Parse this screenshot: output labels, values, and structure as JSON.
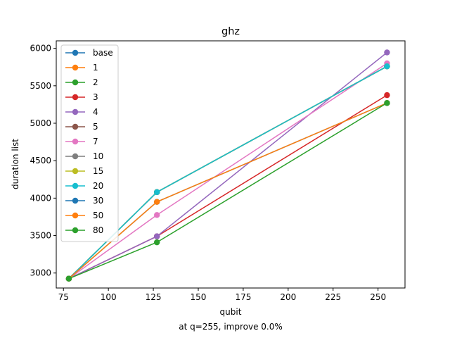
{
  "chart_data": {
    "type": "line",
    "title": "ghz",
    "xlabel": "qubit",
    "ylabel": "duration list",
    "caption": "at q=255, improve 0.0%",
    "x": [
      78,
      127,
      255
    ],
    "xlim": [
      71,
      265
    ],
    "ylim": [
      2800,
      6100
    ],
    "xticks": [
      75,
      100,
      125,
      150,
      175,
      200,
      225,
      250
    ],
    "yticks": [
      3000,
      3500,
      4000,
      4500,
      5000,
      5500,
      6000
    ],
    "grid": false,
    "legend_position": "upper-left",
    "series": [
      {
        "name": "base",
        "color": "#1f77b4",
        "values": [
          2925,
          4080,
          5760
        ]
      },
      {
        "name": "1",
        "color": "#ff7f0e",
        "values": [
          2925,
          4080,
          5760
        ]
      },
      {
        "name": "2",
        "color": "#2ca02c",
        "values": [
          2925,
          4080,
          5760
        ]
      },
      {
        "name": "3",
        "color": "#d62728",
        "values": [
          2925,
          3490,
          5375
        ]
      },
      {
        "name": "4",
        "color": "#9467bd",
        "values": [
          2925,
          3490,
          5945
        ]
      },
      {
        "name": "5",
        "color": "#8c564b",
        "values": [
          2925,
          4080,
          5760
        ]
      },
      {
        "name": "7",
        "color": "#e377c2",
        "values": [
          2925,
          3775,
          5800
        ]
      },
      {
        "name": "10",
        "color": "#7f7f7f",
        "values": [
          2925,
          4080,
          5760
        ]
      },
      {
        "name": "15",
        "color": "#bcbd22",
        "values": [
          2925,
          4080,
          5760
        ]
      },
      {
        "name": "20",
        "color": "#17becf",
        "values": [
          2925,
          4080,
          5760
        ]
      },
      {
        "name": "30",
        "color": "#1f77b4",
        "values": [
          2925,
          3950,
          5270
        ]
      },
      {
        "name": "50",
        "color": "#ff7f0e",
        "values": [
          2925,
          3950,
          5270
        ]
      },
      {
        "name": "80",
        "color": "#2ca02c",
        "values": [
          2925,
          3410,
          5270
        ]
      }
    ]
  }
}
